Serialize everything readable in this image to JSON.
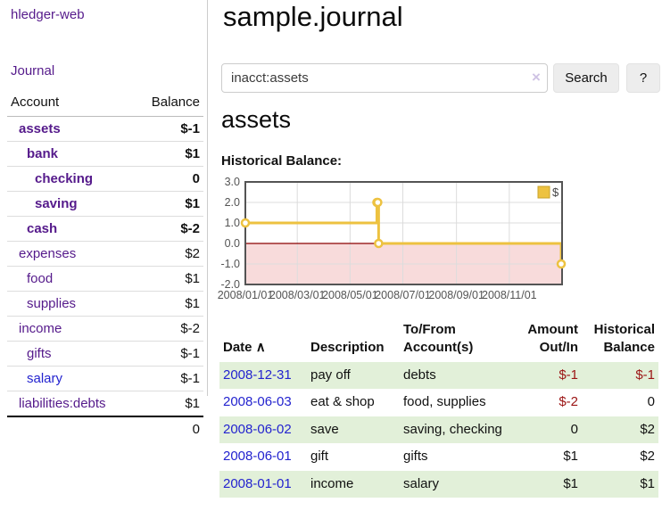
{
  "app": {
    "title": "hledger-web"
  },
  "nav": {
    "journal": "Journal"
  },
  "sidebar": {
    "header": {
      "account": "Account",
      "balance": "Balance"
    },
    "accounts": [
      {
        "name": "assets",
        "level": 0,
        "emph": true,
        "link_class": "purple",
        "balance": "$-1",
        "bal_class": "neg"
      },
      {
        "name": "bank",
        "level": 1,
        "emph": true,
        "link_class": "purple",
        "balance": "$1",
        "bal_class": ""
      },
      {
        "name": "checking",
        "level": 2,
        "emph": true,
        "link_class": "purple",
        "balance": "0",
        "bal_class": ""
      },
      {
        "name": "saving",
        "level": 2,
        "emph": true,
        "link_class": "purple",
        "balance": "$1",
        "bal_class": ""
      },
      {
        "name": "cash",
        "level": 1,
        "emph": true,
        "link_class": "purple",
        "balance": "$-2",
        "bal_class": "neg"
      },
      {
        "name": "expenses",
        "level": 0,
        "emph": false,
        "link_class": "purple",
        "balance": "$2",
        "bal_class": ""
      },
      {
        "name": "food",
        "level": 1,
        "emph": false,
        "link_class": "purple",
        "balance": "$1",
        "bal_class": ""
      },
      {
        "name": "supplies",
        "level": 1,
        "emph": false,
        "link_class": "purple",
        "balance": "$1",
        "bal_class": ""
      },
      {
        "name": "income",
        "level": 0,
        "emph": false,
        "link_class": "purple",
        "balance": "$-2",
        "bal_class": "neg-light"
      },
      {
        "name": "gifts",
        "level": 1,
        "emph": false,
        "link_class": "purple",
        "balance": "$-1",
        "bal_class": "neg-light"
      },
      {
        "name": "salary",
        "level": 1,
        "emph": false,
        "link_class": "blue",
        "balance": "$-1",
        "bal_class": "neg-light"
      },
      {
        "name": "liabilities:debts",
        "level": 0,
        "emph": false,
        "link_class": "purple",
        "balance": "$1",
        "bal_class": ""
      }
    ],
    "total": "0"
  },
  "main": {
    "title": "sample.journal",
    "search": {
      "value": "inacct:assets",
      "clear_icon": "×",
      "button": "Search",
      "help_button": "?"
    },
    "account_heading": "assets",
    "chart_heading": "Historical Balance:"
  },
  "chart_data": {
    "type": "line",
    "step": true,
    "title": "Historical Balance:",
    "series": [
      {
        "name": "$",
        "color": "#edc240",
        "points": [
          [
            "2008-01-01",
            1
          ],
          [
            "2008-06-01",
            2
          ],
          [
            "2008-06-02",
            2
          ],
          [
            "2008-06-03",
            0
          ],
          [
            "2008-12-31",
            -1
          ]
        ]
      }
    ],
    "xlim": [
      "2008-01-01",
      "2009-01-01"
    ],
    "ylim": [
      -2,
      3
    ],
    "yticks": [
      3,
      2,
      1,
      0,
      -1,
      -2
    ],
    "xticks": [
      "2008/01/01",
      "2008/03/01",
      "2008/05/01",
      "2008/07/01",
      "2008/09/01",
      "2008/11/01"
    ],
    "grid": true,
    "legend_position": "top-right",
    "negative_fill": "#f8dbdb",
    "zero_line_color": "#8b0000",
    "border_color": "#545454",
    "grid_color": "#dcdcdc"
  },
  "table": {
    "headers": {
      "date": "Date",
      "sort_icon": "∧",
      "description": "Description",
      "accounts": "To/From Account(s)",
      "amount": "Amount Out/In",
      "balance": "Historical Balance"
    },
    "rows": [
      {
        "date": "2008-12-31",
        "description": "pay off",
        "accounts": "debts",
        "amount": "$-1",
        "amount_class": "neg",
        "balance": "$-1",
        "balance_class": "neg"
      },
      {
        "date": "2008-06-03",
        "description": "eat & shop",
        "accounts": "food, supplies",
        "amount": "$-2",
        "amount_class": "neg",
        "balance": "0",
        "balance_class": ""
      },
      {
        "date": "2008-06-02",
        "description": "save",
        "accounts": "saving, checking",
        "amount": "0",
        "amount_class": "",
        "balance": "$2",
        "balance_class": ""
      },
      {
        "date": "2008-06-01",
        "description": "gift",
        "accounts": "gifts",
        "amount": "$1",
        "amount_class": "",
        "balance": "$2",
        "balance_class": ""
      },
      {
        "date": "2008-01-01",
        "description": "income",
        "accounts": "salary",
        "amount": "$1",
        "amount_class": "",
        "balance": "$1",
        "balance_class": ""
      }
    ]
  },
  "colors": {
    "link_purple": "#551a8b",
    "link_blue": "#2323cf",
    "negative_strong": "#9b1414",
    "negative_light": "#b97777",
    "row_stripe_green": "#e2f0d9",
    "series_yellow": "#edc240"
  }
}
